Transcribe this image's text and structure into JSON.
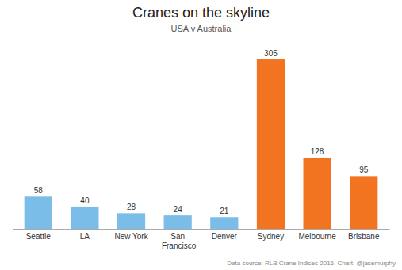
{
  "chart_data": {
    "type": "bar",
    "title": "Cranes on the skyline",
    "subtitle": "USA v Australia",
    "annotations": [
      "Data source: RLB Crane Indices 2016. Chart: @jasemurphy"
    ],
    "categories": [
      "Seattle",
      "LA",
      "New York",
      "San\nFrancisco",
      "Denver",
      "Sydney",
      "Melbourne",
      "Brisbane"
    ],
    "values": [
      58,
      40,
      28,
      24,
      21,
      305,
      128,
      95
    ],
    "colors": [
      "#7abde8",
      "#7abde8",
      "#7abde8",
      "#7abde8",
      "#7abde8",
      "#f27320",
      "#f27320",
      "#f27320"
    ],
    "ylim": [
      0,
      335
    ],
    "data_labels": true,
    "tick_labels": "x",
    "grid": false
  }
}
